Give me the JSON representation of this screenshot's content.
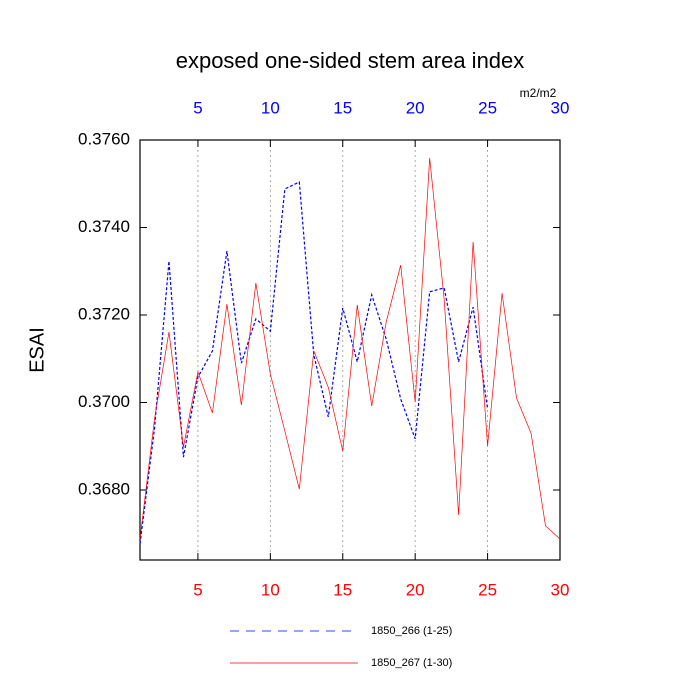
{
  "chart_data": {
    "type": "line",
    "title": "exposed one-sided stem area index",
    "y_label": "ESAI",
    "x_top_units": "m2/m2",
    "xlim": [
      1,
      30
    ],
    "xticks": [
      5,
      10,
      15,
      20,
      25,
      30
    ],
    "x_top_tick_color": "#0000ff",
    "x_bottom_tick_color": "#ff0000",
    "ylim": [
      0.3664,
      0.376
    ],
    "yticks": [
      {
        "value": 0.368,
        "label": "0.3680"
      },
      {
        "value": 0.37,
        "label": "0.3700"
      },
      {
        "value": 0.372,
        "label": "0.3720"
      },
      {
        "value": 0.374,
        "label": "0.3740"
      },
      {
        "value": 0.376,
        "label": "0.3760"
      }
    ],
    "grid": true,
    "series": [
      {
        "name": "1850_266 (1-25)",
        "color": "#0000ff",
        "line_style": "dashed",
        "x": [
          1,
          2,
          3,
          4,
          5,
          6,
          7,
          8,
          9,
          10,
          11,
          12,
          13,
          14,
          15,
          16,
          17,
          18,
          19,
          20,
          21,
          22,
          23,
          24,
          25
        ],
        "values": [
          0.36677,
          0.3694,
          0.37323,
          0.36875,
          0.37058,
          0.37118,
          0.37346,
          0.3709,
          0.37191,
          0.37163,
          0.37488,
          0.37504,
          0.37109,
          0.36967,
          0.37216,
          0.37093,
          0.37246,
          0.37145,
          0.37008,
          0.36917,
          0.37253,
          0.37262,
          0.37093,
          0.37218,
          0.36985
        ]
      },
      {
        "name": "1850_267 (1-30)",
        "color": "#ff0000",
        "line_style": "solid",
        "x": [
          1,
          2,
          3,
          4,
          5,
          6,
          7,
          8,
          9,
          10,
          11,
          12,
          13,
          14,
          15,
          16,
          17,
          18,
          19,
          20,
          21,
          22,
          23,
          24,
          25,
          26,
          27,
          28,
          29,
          30
        ],
        "values": [
          0.36688,
          0.36962,
          0.37161,
          0.36898,
          0.3707,
          0.36976,
          0.37225,
          0.36994,
          0.37273,
          0.37065,
          0.36935,
          0.36802,
          0.37118,
          0.37035,
          0.36889,
          0.37223,
          0.36992,
          0.37184,
          0.37314,
          0.37001,
          0.37559,
          0.37237,
          0.36743,
          0.37367,
          0.36901,
          0.3725,
          0.3701,
          0.3693,
          0.36718,
          0.36688
        ]
      }
    ]
  }
}
